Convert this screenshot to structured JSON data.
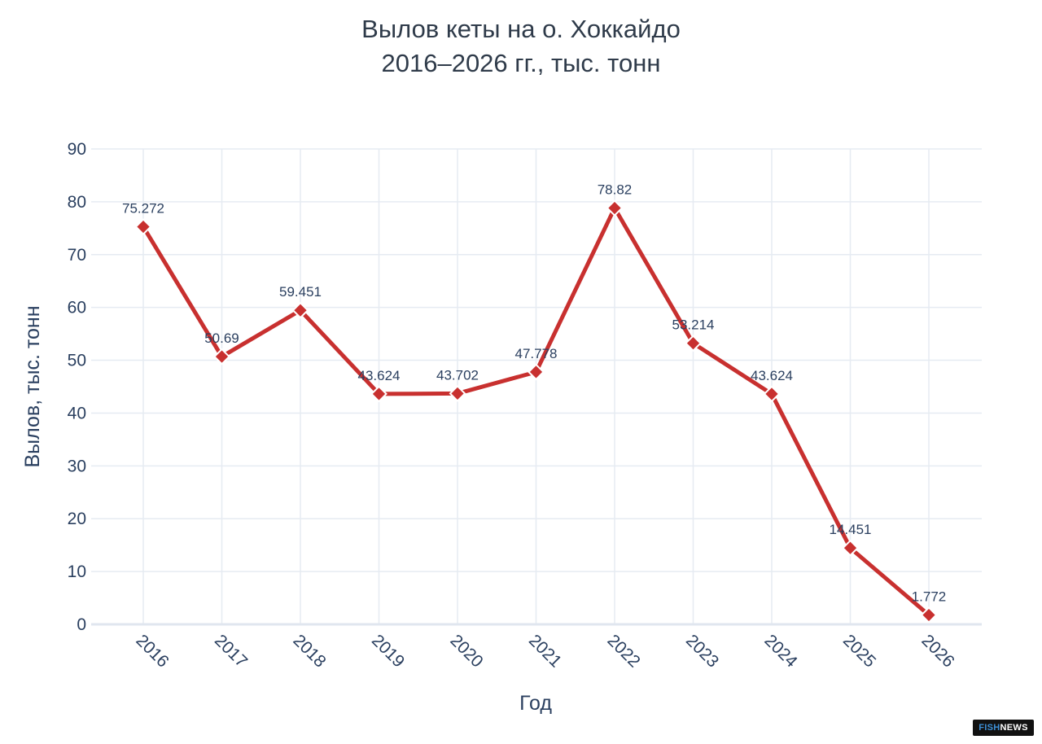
{
  "chart_data": {
    "type": "line",
    "title_lines": [
      "Вылов кеты на о. Хоккайдо",
      "2016–2026 гг., тыс. тонн"
    ],
    "xlabel": "Год",
    "ylabel": "Вылов, тыс. тонн",
    "x": [
      "2016",
      "2017",
      "2018",
      "2019",
      "2020",
      "2021",
      "2022",
      "2023",
      "2024",
      "2025",
      "2026"
    ],
    "values": [
      75.272,
      50.69,
      59.451,
      43.624,
      43.702,
      47.778,
      78.82,
      53.214,
      43.624,
      14.451,
      1.772
    ],
    "data_labels": [
      "75.272",
      "50.69",
      "59.451",
      "43.624",
      "43.702",
      "47.778",
      "78.82",
      "53.214",
      "43.624",
      "14.451",
      "1.772"
    ],
    "ylim": [
      0,
      90
    ],
    "yticks": [
      "0",
      "10",
      "20",
      "30",
      "40",
      "50",
      "60",
      "70",
      "80",
      "90"
    ],
    "grid": true,
    "legend": "none",
    "marker": "diamond",
    "line_color": "#c8302f"
  },
  "watermark": {
    "part1": "FISH",
    "part2": "NEWS"
  }
}
